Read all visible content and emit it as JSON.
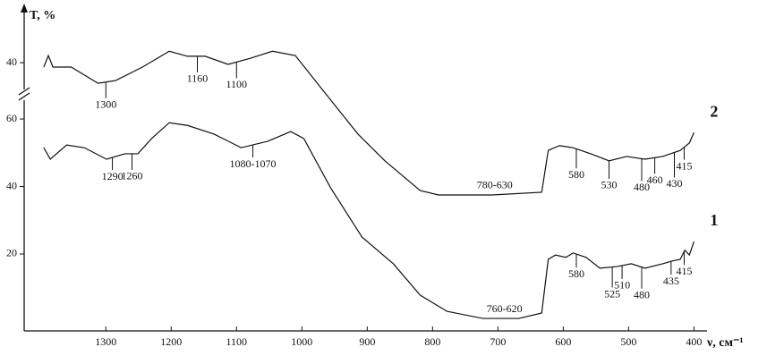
{
  "chart_data": {
    "type": "line",
    "y_label": "T, %",
    "x_label": "ν, см⁻¹",
    "xlim": [
      1425,
      380
    ],
    "xticks": [
      1300,
      1200,
      1100,
      1000,
      900,
      800,
      700,
      600,
      500,
      400
    ],
    "ylim": [
      -2.8,
      91.3
    ],
    "yticks": [
      20,
      40,
      60
    ],
    "y2lim": [
      -39.5,
      54.6
    ],
    "y2ticks": [
      40
    ],
    "series": [
      {
        "name": "2",
        "color": "#111111",
        "axis": "y2",
        "x": [
          1395,
          1388,
          1381,
          1353,
          1312,
          1285,
          1244,
          1203,
          1175,
          1148,
          1113,
          1079,
          1045,
          1010,
          969,
          914,
          873,
          819,
          791,
          709,
          633,
          623,
          606,
          585,
          558,
          530,
          503,
          475,
          448,
          421,
          407,
          400
        ],
        "values": [
          38.7,
          42.1,
          38.7,
          38.7,
          33.9,
          34.7,
          38.7,
          43.4,
          41.9,
          41.9,
          39.5,
          41.3,
          43.4,
          42.1,
          32.1,
          18.8,
          10.9,
          2.1,
          0.8,
          0.8,
          1.6,
          14,
          15.4,
          14.8,
          13,
          10.9,
          12.2,
          11.4,
          12.2,
          14,
          16.2,
          19.3
        ]
      },
      {
        "name": "1",
        "color": "#111111",
        "x": [
          1395,
          1385,
          1360,
          1333,
          1299,
          1271,
          1251,
          1230,
          1203,
          1175,
          1134,
          1093,
          1052,
          1017,
          997,
          956,
          908,
          860,
          819,
          778,
          723,
          668,
          633,
          623,
          612,
          596,
          585,
          565,
          544,
          517,
          496,
          475,
          448,
          434,
          421,
          414,
          407,
          400
        ],
        "values": [
          51.5,
          48.1,
          52.3,
          51.5,
          48.1,
          49.7,
          49.7,
          54.2,
          58.9,
          58.1,
          55.5,
          51.5,
          53.4,
          56.3,
          54.2,
          39.6,
          25,
          17.1,
          7.8,
          3,
          0.9,
          0.9,
          2.5,
          18.4,
          19.7,
          19,
          20.3,
          19,
          15.8,
          16.3,
          17.1,
          15.8,
          17.1,
          17.9,
          18.4,
          21.1,
          19.7,
          23.7
        ]
      }
    ],
    "annotations": [
      {
        "text": "1300",
        "x": 1300,
        "series": 0
      },
      {
        "text": "1160",
        "x": 1160,
        "series": 0
      },
      {
        "text": "1100",
        "x": 1100,
        "series": 0
      },
      {
        "text": "780-630",
        "x": 705,
        "series": 0
      },
      {
        "text": "580",
        "x": 580,
        "series": 0
      },
      {
        "text": "530",
        "x": 530,
        "series": 0
      },
      {
        "text": "480",
        "x": 480,
        "series": 0
      },
      {
        "text": "460",
        "x": 460,
        "series": 0
      },
      {
        "text": "430",
        "x": 430,
        "series": 0
      },
      {
        "text": "415",
        "x": 415,
        "series": 0
      },
      {
        "text": "1290",
        "x": 1290,
        "series": 1
      },
      {
        "text": "1260",
        "x": 1260,
        "series": 1
      },
      {
        "text": "1080-1070",
        "x": 1075,
        "series": 1
      },
      {
        "text": "760-620",
        "x": 690,
        "series": 1
      },
      {
        "text": "580",
        "x": 580,
        "series": 1
      },
      {
        "text": "525",
        "x": 525,
        "series": 1
      },
      {
        "text": "510",
        "x": 510,
        "series": 1
      },
      {
        "text": "480",
        "x": 480,
        "series": 1
      },
      {
        "text": "435",
        "x": 435,
        "series": 1
      },
      {
        "text": "415",
        "x": 415,
        "series": 1
      }
    ]
  }
}
